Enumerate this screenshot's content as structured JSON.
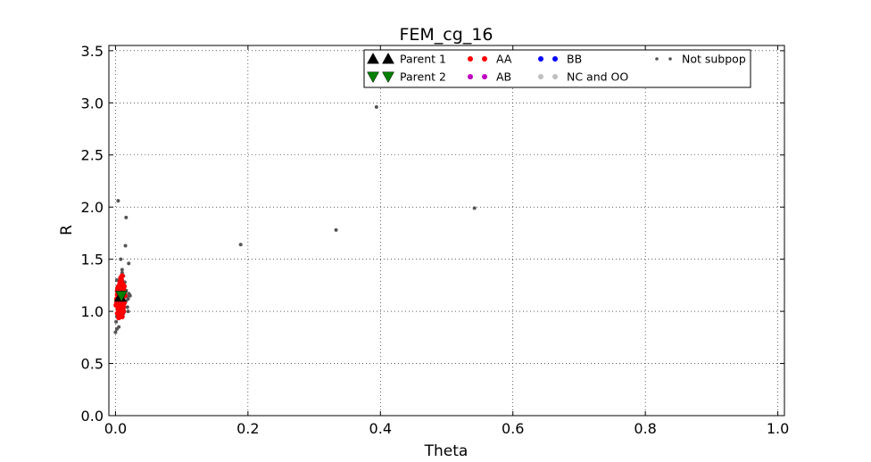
{
  "chart_data": {
    "type": "scatter",
    "title": "FEM_cg_16",
    "xlabel": "Theta",
    "ylabel": "R",
    "xlim": [
      -0.01,
      1.01
    ],
    "ylim": [
      0.0,
      3.55
    ],
    "xticks": [
      0.0,
      0.2,
      0.4,
      0.6,
      0.8,
      1.0
    ],
    "xtick_labels": [
      "0.0",
      "0.2",
      "0.4",
      "0.6",
      "0.8",
      "1.0"
    ],
    "yticks": [
      0.0,
      0.5,
      1.0,
      1.5,
      2.0,
      2.5,
      3.0,
      3.5
    ],
    "ytick_labels": [
      "0.0",
      "0.5",
      "1.0",
      "1.5",
      "2.0",
      "2.5",
      "3.0",
      "3.5"
    ],
    "grid": true,
    "legend_position": "top-right",
    "series": [
      {
        "name": "Not subpop",
        "marker": "dot",
        "color": "#555555",
        "points": [
          [
            0.004,
            2.06
          ],
          [
            0.016,
            1.9
          ],
          [
            0.015,
            1.63
          ],
          [
            0.008,
            1.5
          ],
          [
            0.02,
            1.46
          ],
          [
            0.01,
            1.4
          ],
          [
            0.01,
            1.37
          ],
          [
            0.012,
            1.34
          ],
          [
            0.002,
            1.3
          ],
          [
            0.014,
            1.28
          ],
          [
            0.002,
            1.22
          ],
          [
            0.016,
            1.2
          ],
          [
            0.02,
            1.17
          ],
          [
            0.022,
            1.15
          ],
          [
            0.018,
            1.14
          ],
          [
            0.021,
            1.16
          ],
          [
            0.019,
            1.12
          ],
          [
            0.016,
            1.1
          ],
          [
            0.018,
            1.04
          ],
          [
            0.019,
            1.0
          ],
          [
            0.012,
            0.98
          ],
          [
            0.002,
            0.95
          ],
          [
            0.001,
            0.9
          ],
          [
            0.005,
            0.85
          ],
          [
            0.002,
            0.83
          ],
          [
            0.0,
            0.8
          ],
          [
            0.003,
            1.05
          ],
          [
            0.005,
            0.97
          ],
          [
            0.189,
            1.64
          ],
          [
            0.333,
            1.78
          ],
          [
            0.394,
            2.96
          ],
          [
            0.542,
            1.99
          ]
        ]
      },
      {
        "name": "AA",
        "marker": "dot",
        "color": "#ff0000",
        "points": [
          [
            0.003,
            1.2
          ],
          [
            0.006,
            1.18
          ],
          [
            0.009,
            1.16
          ],
          [
            0.004,
            1.14
          ],
          [
            0.008,
            1.12
          ],
          [
            0.011,
            1.1
          ],
          [
            0.002,
            1.08
          ],
          [
            0.006,
            1.06
          ],
          [
            0.01,
            1.05
          ],
          [
            0.004,
            1.03
          ],
          [
            0.008,
            1.01
          ],
          [
            0.012,
            1.0
          ],
          [
            0.003,
            0.98
          ],
          [
            0.007,
            0.96
          ],
          [
            0.01,
            0.95
          ],
          [
            0.005,
            0.94
          ],
          [
            0.009,
            1.22
          ],
          [
            0.005,
            1.24
          ],
          [
            0.011,
            1.26
          ],
          [
            0.007,
            1.28
          ],
          [
            0.009,
            1.3
          ],
          [
            0.008,
            1.32
          ],
          [
            0.01,
            1.34
          ],
          [
            0.006,
            1.25
          ],
          [
            0.012,
            1.21
          ],
          [
            0.013,
            1.18
          ],
          [
            0.014,
            1.15
          ],
          [
            0.002,
            1.12
          ],
          [
            0.013,
            1.08
          ],
          [
            0.003,
            1.16
          ],
          [
            0.007,
            1.09
          ],
          [
            0.011,
            1.13
          ],
          [
            0.005,
            1.01
          ],
          [
            0.012,
            1.04
          ],
          [
            0.001,
            1.06
          ],
          [
            0.008,
            1.27
          ],
          [
            0.004,
            1.23
          ],
          [
            0.01,
            0.99
          ],
          [
            0.006,
            1.11
          ],
          [
            0.013,
            1.24
          ]
        ]
      },
      {
        "name": "Parent 1",
        "marker": "triangle-up",
        "color": "#000000",
        "points": [
          [
            0.007,
            1.14
          ]
        ]
      },
      {
        "name": "Parent 2",
        "marker": "triangle-down",
        "color": "#007f00",
        "points": [
          [
            0.009,
            1.15
          ]
        ]
      }
    ],
    "legend": [
      {
        "name": "Parent 1",
        "marker": "triangle-up",
        "color": "#000000"
      },
      {
        "name": "Parent 2",
        "marker": "triangle-down",
        "color": "#007f00"
      },
      {
        "name": "AA",
        "marker": "dot",
        "color": "#ff0000"
      },
      {
        "name": "AB",
        "marker": "dot",
        "color": "#bf00bf"
      },
      {
        "name": "BB",
        "marker": "dot",
        "color": "#0000ff"
      },
      {
        "name": "NC and OO",
        "marker": "dot",
        "color": "#bfbfbf"
      },
      {
        "name": "Not subpop",
        "marker": "small-dot",
        "color": "#555555"
      }
    ]
  }
}
